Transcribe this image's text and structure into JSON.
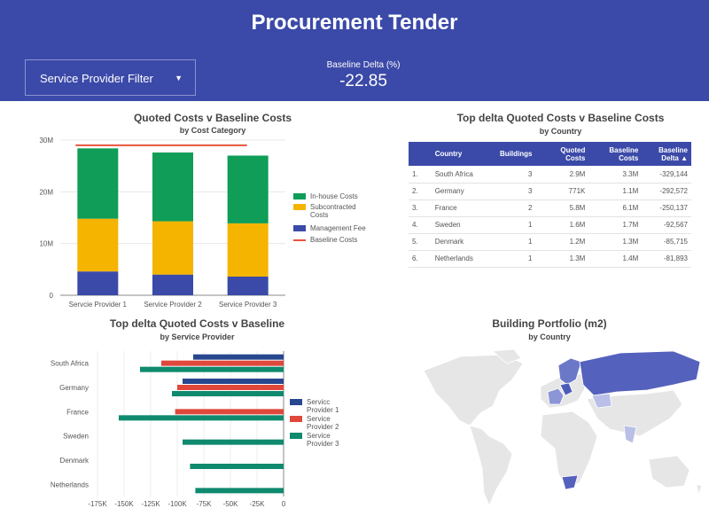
{
  "header": {
    "title": "Procurement Tender",
    "filter_label": "Service Provider Filter",
    "kpi_label": "Baseline Delta (%)",
    "kpi_value": "-22.85"
  },
  "colors": {
    "header": "#3b4aa8",
    "in_house": "#0f9d58",
    "subcontracted": "#f4b400",
    "management_fee": "#3b4aa8",
    "baseline": "#e8543f",
    "sp1": "#27478f",
    "sp2": "#e0483c",
    "sp3": "#0f8a6e"
  },
  "chart1": {
    "title": "Quoted Costs v Baseline Costs",
    "subtitle": "by Cost Category"
  },
  "table": {
    "title": "Top delta Quoted Costs v Baseline Costs",
    "subtitle": "by Country",
    "columns": [
      "Country",
      "Buildings",
      "Quoted Costs",
      "Baseline Costs",
      "Baseline Delta ▲"
    ],
    "rows": [
      [
        "1.",
        "South Africa",
        "3",
        "2.9M",
        "3.3M",
        "-329,144"
      ],
      [
        "2.",
        "Germany",
        "3",
        "771K",
        "1.1M",
        "-292,572"
      ],
      [
        "3.",
        "France",
        "2",
        "5.8M",
        "6.1M",
        "-250,137"
      ],
      [
        "4.",
        "Sweden",
        "1",
        "1.6M",
        "1.7M",
        "-92,567"
      ],
      [
        "5.",
        "Denmark",
        "1",
        "1.2M",
        "1.3M",
        "-85,715"
      ],
      [
        "6.",
        "Netherlands",
        "1",
        "1.3M",
        "1.4M",
        "-81,893"
      ]
    ]
  },
  "chart2": {
    "title": "Top delta Quoted Costs v Baseline",
    "subtitle": "by Service Provider"
  },
  "map": {
    "title": "Building Portfolio  (m2)",
    "subtitle": "by Country"
  },
  "chart_data": [
    {
      "type": "bar",
      "stacked": true,
      "categories": [
        "Servcie Provider 1",
        "Service Provider 2",
        "Service Provider 3"
      ],
      "series": [
        {
          "name": "Management Fee",
          "values": [
            4.6,
            4.0,
            3.6
          ]
        },
        {
          "name": "Subcontracted Costs",
          "values": [
            10.2,
            10.3,
            10.3
          ]
        },
        {
          "name": "In-house Costs",
          "values": [
            13.6,
            13.3,
            13.1
          ]
        }
      ],
      "lines": [
        {
          "name": "Baseline Costs",
          "value": 29.0
        }
      ],
      "yticks": [
        "0",
        "10M",
        "20M",
        "30M"
      ],
      "ylim": [
        0,
        30
      ],
      "legend": "right"
    },
    {
      "type": "bar",
      "orientation": "horizontal",
      "categories": [
        "South Africa",
        "Germany",
        "France",
        "Sweden",
        "Denmark",
        "Netherlands"
      ],
      "series": [
        {
          "name": "Servicc Provider 1",
          "values": [
            -85000,
            -95000,
            0,
            0,
            0,
            0
          ]
        },
        {
          "name": "Service Provider 2",
          "values": [
            -115000,
            -100000,
            -102000,
            0,
            0,
            0
          ]
        },
        {
          "name": "Service Provider 3",
          "values": [
            -135000,
            -105000,
            -155000,
            -95000,
            -88000,
            -83000
          ]
        }
      ],
      "xticks": [
        "-175K",
        "-150K",
        "-125K",
        "-100K",
        "-75K",
        "-50K",
        "-25K",
        "0"
      ],
      "xlim": [
        -175000,
        0
      ],
      "legend": "right"
    }
  ]
}
